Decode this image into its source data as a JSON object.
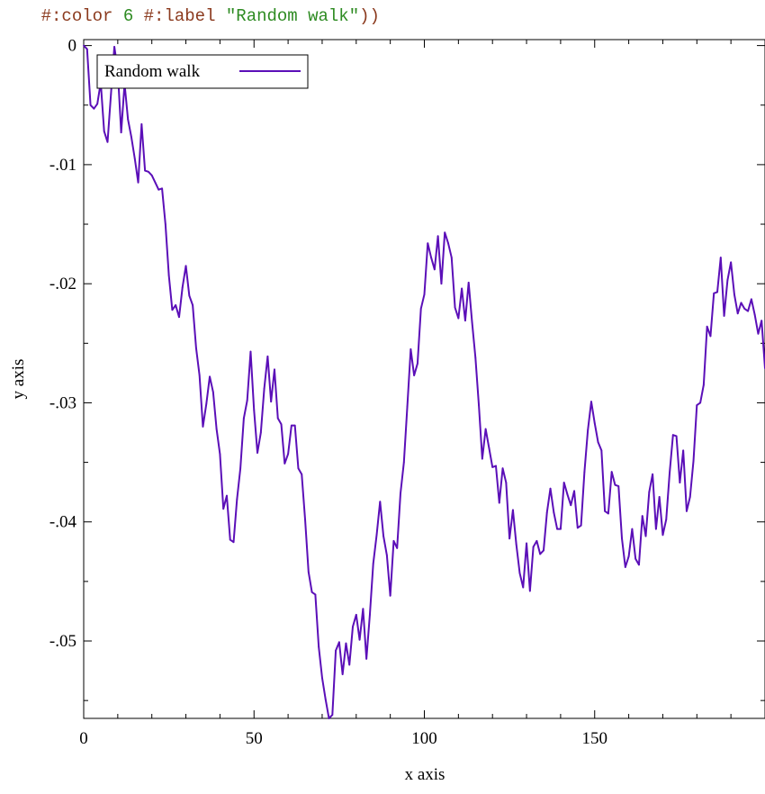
{
  "code_snippet": {
    "indent": "    ",
    "kw_color": "#:color",
    "color_value": "6",
    "kw_label": "#:label",
    "label_value": "\"Random walk\"",
    "closing": "))"
  },
  "colors": {
    "series": "#5b0fb8",
    "axis": "#000000",
    "code_keyword": "#8b3a1e",
    "code_literal": "#2e8b22"
  },
  "chart_data": {
    "type": "line",
    "xlabel": "x axis",
    "ylabel": "y axis",
    "xlim": [
      0,
      200
    ],
    "ylim": [
      -0.0565,
      0.0005
    ],
    "x_ticks": [
      0,
      50,
      100,
      150
    ],
    "x_tick_labels": [
      "0",
      "50",
      "100",
      "150"
    ],
    "y_ticks": [
      0,
      -0.01,
      -0.02,
      -0.03,
      -0.04,
      -0.05
    ],
    "y_tick_labels": [
      "0",
      "-.01",
      "-.02",
      "-.03",
      "-.04",
      "-.05"
    ],
    "grid": false,
    "legend": {
      "position": "top-left"
    },
    "series": [
      {
        "name": "Random walk",
        "x_start": 0,
        "x_step": 1,
        "values": [
          0,
          -0.0003,
          -0.005,
          -0.0053,
          -0.0049,
          -0.0031,
          -0.0072,
          -0.0081,
          -0.0041,
          -0.0001,
          -0.0021,
          -0.0073,
          -0.0032,
          -0.0062,
          -0.0077,
          -0.0095,
          -0.0115,
          -0.0066,
          -0.0105,
          -0.0106,
          -0.0109,
          -0.0115,
          -0.0121,
          -0.012,
          -0.015,
          -0.0193,
          -0.0222,
          -0.0218,
          -0.0228,
          -0.0203,
          -0.0185,
          -0.021,
          -0.0218,
          -0.0254,
          -0.0277,
          -0.032,
          -0.0301,
          -0.0278,
          -0.0291,
          -0.0322,
          -0.0343,
          -0.0389,
          -0.0378,
          -0.0415,
          -0.0417,
          -0.0381,
          -0.0355,
          -0.0313,
          -0.0298,
          -0.0257,
          -0.0306,
          -0.0342,
          -0.0325,
          -0.0288,
          -0.0261,
          -0.0299,
          -0.0272,
          -0.0313,
          -0.0318,
          -0.0351,
          -0.0343,
          -0.0319,
          -0.0319,
          -0.0355,
          -0.036,
          -0.0398,
          -0.0442,
          -0.0459,
          -0.0461,
          -0.0505,
          -0.0531,
          -0.0549,
          -0.0565,
          -0.0562,
          -0.0508,
          -0.0501,
          -0.0528,
          -0.0502,
          -0.052,
          -0.0488,
          -0.0478,
          -0.0499,
          -0.0473,
          -0.0515,
          -0.0478,
          -0.0435,
          -0.0411,
          -0.0383,
          -0.0412,
          -0.0428,
          -0.0462,
          -0.0416,
          -0.0422,
          -0.0376,
          -0.035,
          -0.0303,
          -0.0255,
          -0.0277,
          -0.0267,
          -0.0221,
          -0.0209,
          -0.0166,
          -0.0178,
          -0.0188,
          -0.016,
          -0.02,
          -0.0157,
          -0.0166,
          -0.0178,
          -0.022,
          -0.0229,
          -0.0204,
          -0.0231,
          -0.0199,
          -0.0232,
          -0.0262,
          -0.0302,
          -0.0347,
          -0.0322,
          -0.0338,
          -0.0354,
          -0.0353,
          -0.0384,
          -0.0355,
          -0.0367,
          -0.0414,
          -0.039,
          -0.0419,
          -0.0443,
          -0.0455,
          -0.0418,
          -0.0458,
          -0.0421,
          -0.0416,
          -0.0427,
          -0.0424,
          -0.0392,
          -0.0372,
          -0.0392,
          -0.0406,
          -0.0406,
          -0.0367,
          -0.0377,
          -0.0386,
          -0.0374,
          -0.0405,
          -0.0403,
          -0.0358,
          -0.0323,
          -0.0299,
          -0.0317,
          -0.0333,
          -0.034,
          -0.0391,
          -0.0393,
          -0.0358,
          -0.0369,
          -0.037,
          -0.0414,
          -0.0438,
          -0.0429,
          -0.0406,
          -0.0431,
          -0.0436,
          -0.0395,
          -0.0412,
          -0.0375,
          -0.036,
          -0.0406,
          -0.0379,
          -0.0411,
          -0.0398,
          -0.0359,
          -0.0327,
          -0.0328,
          -0.0367,
          -0.034,
          -0.0391,
          -0.0379,
          -0.0349,
          -0.0302,
          -0.03,
          -0.0285,
          -0.0236,
          -0.0244,
          -0.0208,
          -0.0207,
          -0.0178,
          -0.0227,
          -0.0197,
          -0.0182,
          -0.0209,
          -0.0225,
          -0.0216,
          -0.0221,
          -0.0223,
          -0.0213,
          -0.0226,
          -0.0242,
          -0.0231,
          -0.0271,
          -0.0273
        ]
      }
    ]
  }
}
